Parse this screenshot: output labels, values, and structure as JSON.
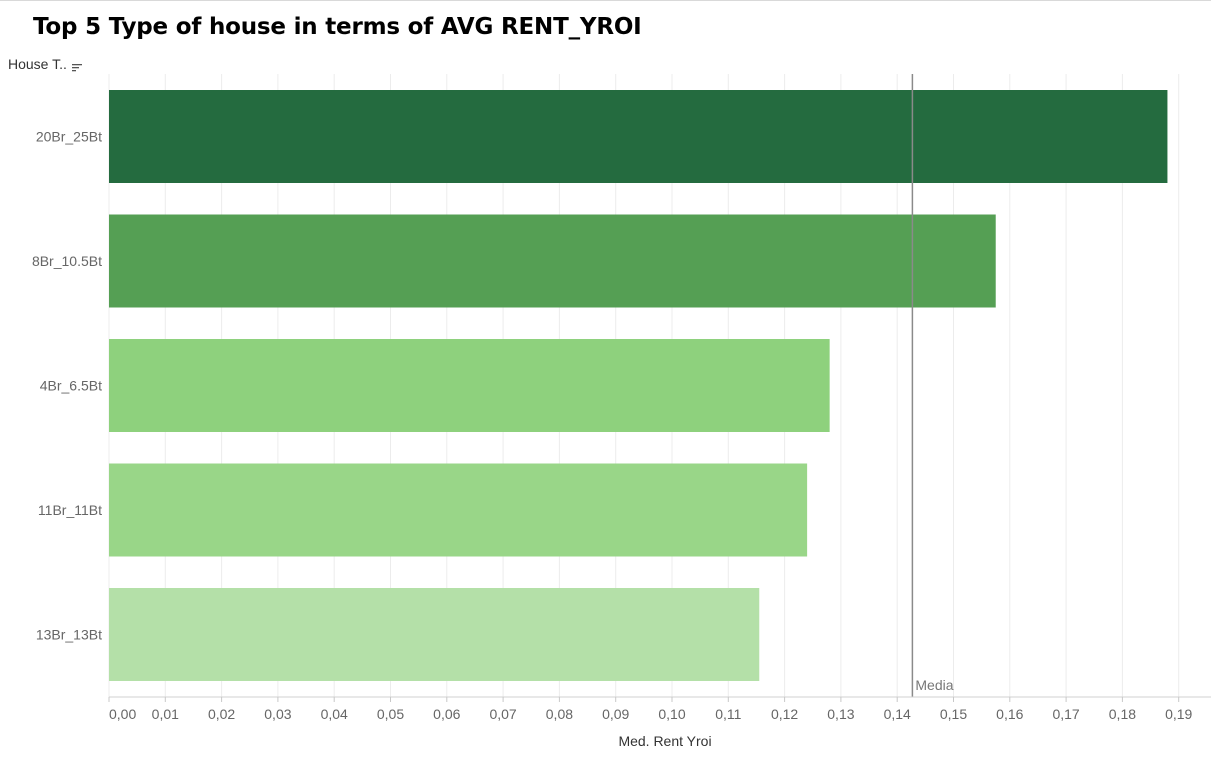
{
  "title": "Top 5 Type of house in terms of AVG RENT_YROI",
  "header": {
    "field_label": "House T..",
    "sort_icon": "sort-descending-icon"
  },
  "colors": {
    "bar_shades": [
      "#246b3f",
      "#559f54",
      "#8ed17d",
      "#99d688",
      "#b4e0a8"
    ],
    "reference_line": "#8a8a8a",
    "gridline": "#ececec"
  },
  "chart_data": {
    "type": "bar",
    "orientation": "horizontal",
    "title": "Top 5 Type of house in terms of AVG RENT_YROI",
    "ylabel": "House T..",
    "xlabel": "Med. Rent Yroi",
    "categories": [
      "20Br_25Bt",
      "8Br_10.5Bt",
      "4Br_6.5Bt",
      "11Br_11Bt",
      "13Br_13Bt"
    ],
    "values": [
      0.188,
      0.1575,
      0.128,
      0.124,
      0.1155
    ],
    "xlim": [
      0,
      0.19
    ],
    "xticks": [
      "0,00",
      "0,01",
      "0,02",
      "0,03",
      "0,04",
      "0,05",
      "0,06",
      "0,07",
      "0,08",
      "0,09",
      "0,10",
      "0,11",
      "0,12",
      "0,13",
      "0,14",
      "0,15",
      "0,16",
      "0,17",
      "0,18",
      "0,19"
    ],
    "reference_line": {
      "label": "Media",
      "value": 0.1427
    },
    "grid": true
  }
}
